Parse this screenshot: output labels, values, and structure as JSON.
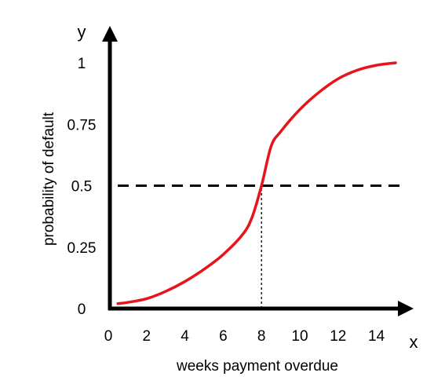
{
  "chart_data": {
    "type": "line",
    "title": "",
    "xlabel": "weeks payment overdue",
    "ylabel": "probability of default",
    "x_axis_letter": "x",
    "y_axis_letter": "y",
    "x_ticks": [
      0,
      2,
      4,
      6,
      8,
      10,
      12,
      14
    ],
    "y_ticks": [
      {
        "value": 0,
        "label": "0"
      },
      {
        "value": 0.25,
        "label": "0.25"
      },
      {
        "value": 0.5,
        "label": "0.5"
      },
      {
        "value": 0.75,
        "label": "0.75"
      },
      {
        "value": 1,
        "label": "1"
      }
    ],
    "xlim": [
      0,
      16
    ],
    "ylim": [
      0,
      1
    ],
    "grid": false,
    "series": [
      {
        "color": "#e8141b",
        "x": [
          0.5,
          1,
          2,
          3,
          4,
          5,
          6,
          7,
          7.5,
          8,
          8.5,
          9,
          10,
          11,
          12,
          13,
          14,
          15
        ],
        "y": [
          0.02,
          0.025,
          0.04,
          0.07,
          0.11,
          0.16,
          0.22,
          0.3,
          0.37,
          0.5,
          0.66,
          0.72,
          0.81,
          0.88,
          0.935,
          0.97,
          0.99,
          1.0
        ]
      }
    ],
    "reference_lines": [
      {
        "orientation": "horizontal",
        "value": 0.5,
        "style": "dashed-heavy",
        "color": "#000000"
      },
      {
        "orientation": "vertical",
        "value": 8,
        "style": "dotted-thin",
        "color": "#000000",
        "from": 0,
        "to": 0.5
      }
    ]
  }
}
